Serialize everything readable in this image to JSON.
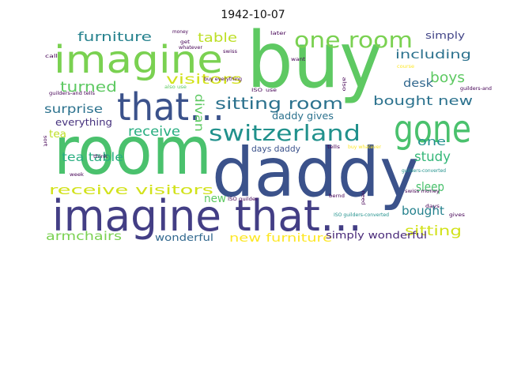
{
  "title": "1942-10-07",
  "words": [
    {
      "text": "buy",
      "color": "#5ec962"
    },
    {
      "text": "room",
      "color": "#4ac16d"
    },
    {
      "text": "daddy",
      "color": "#3b528b"
    },
    {
      "text": "imagine",
      "color": "#7ad151"
    },
    {
      "text": "imagine that…",
      "color": "#433e85"
    },
    {
      "text": "that…",
      "color": "#3b528b"
    },
    {
      "text": "gone",
      "color": "#4ac16d"
    },
    {
      "text": "switzerland",
      "color": "#21918c"
    },
    {
      "text": "one room",
      "color": "#7ad151"
    },
    {
      "text": "sitting room",
      "color": "#2c728e"
    },
    {
      "text": "furniture",
      "color": "#26828e"
    },
    {
      "text": "table",
      "color": "#bddf26"
    },
    {
      "text": "visitors",
      "color": "#d2e21b"
    },
    {
      "text": "turned",
      "color": "#5ec962"
    },
    {
      "text": "divan",
      "color": "#5ec962"
    },
    {
      "text": "including",
      "color": "#2c728e"
    },
    {
      "text": "simply",
      "color": "#414487"
    },
    {
      "text": "boys",
      "color": "#5ec962"
    },
    {
      "text": "desk",
      "color": "#31688e"
    },
    {
      "text": "bought new",
      "color": "#2c728e"
    },
    {
      "text": "surprise",
      "color": "#2c728e"
    },
    {
      "text": "receive",
      "color": "#28ae80"
    },
    {
      "text": "everything",
      "color": "#46327e"
    },
    {
      "text": "daddy gives",
      "color": "#2c728e"
    },
    {
      "text": "tea",
      "color": "#bddf26"
    },
    {
      "text": "tea table",
      "color": "#28ae80"
    },
    {
      "text": "one",
      "color": "#21918c"
    },
    {
      "text": "study",
      "color": "#35b779"
    },
    {
      "text": "days daddy",
      "color": "#3b528b"
    },
    {
      "text": "sleep",
      "color": "#4ac16d"
    },
    {
      "text": "receive visitors",
      "color": "#d2e21b"
    },
    {
      "text": "new",
      "color": "#5ec962"
    },
    {
      "text": "bought",
      "color": "#26828e"
    },
    {
      "text": "sitting",
      "color": "#d2e21b"
    },
    {
      "text": "armchairs",
      "color": "#7ad151"
    },
    {
      "text": "wonderful",
      "color": "#31688e"
    },
    {
      "text": "new furniture",
      "color": "#fde725"
    },
    {
      "text": "simply wonderful",
      "color": "#482878"
    },
    {
      "text": "money",
      "color": "#440154"
    },
    {
      "text": "later",
      "color": "#440154"
    },
    {
      "text": "get",
      "color": "#440154"
    },
    {
      "text": "whatever",
      "color": "#440154"
    },
    {
      "text": "swiss",
      "color": "#440154"
    },
    {
      "text": "call",
      "color": "#440154"
    },
    {
      "text": "want",
      "color": "#440154"
    },
    {
      "text": "also use",
      "color": "#5ec962"
    },
    {
      "text": "buy everything",
      "color": "#440154"
    },
    {
      "text": "also",
      "color": "#440154"
    },
    {
      "text": "course",
      "color": "#fde725"
    },
    {
      "text": "guilders-and",
      "color": "#440154"
    },
    {
      "text": "guilders-and tells",
      "color": "#440154"
    },
    {
      "text": "use",
      "color": "#440154"
    },
    {
      "text": "ISO",
      "color": "#440154"
    },
    {
      "text": "sort",
      "color": "#440154"
    },
    {
      "text": "think",
      "color": "#440154"
    },
    {
      "text": "tells",
      "color": "#440154"
    },
    {
      "text": "buy whatever",
      "color": "#fde725"
    },
    {
      "text": "guilders-converted",
      "color": "#21918c"
    },
    {
      "text": "week",
      "color": "#440154"
    },
    {
      "text": "need",
      "color": "#440154"
    },
    {
      "text": "swiss money",
      "color": "#440154"
    },
    {
      "text": "bernd",
      "color": "#440154"
    },
    {
      "text": "days",
      "color": "#440154"
    },
    {
      "text": "ISO guilder",
      "color": "#440154"
    },
    {
      "text": "gives",
      "color": "#440154"
    },
    {
      "text": "ISO guilders-converted",
      "color": "#21918c"
    }
  ]
}
